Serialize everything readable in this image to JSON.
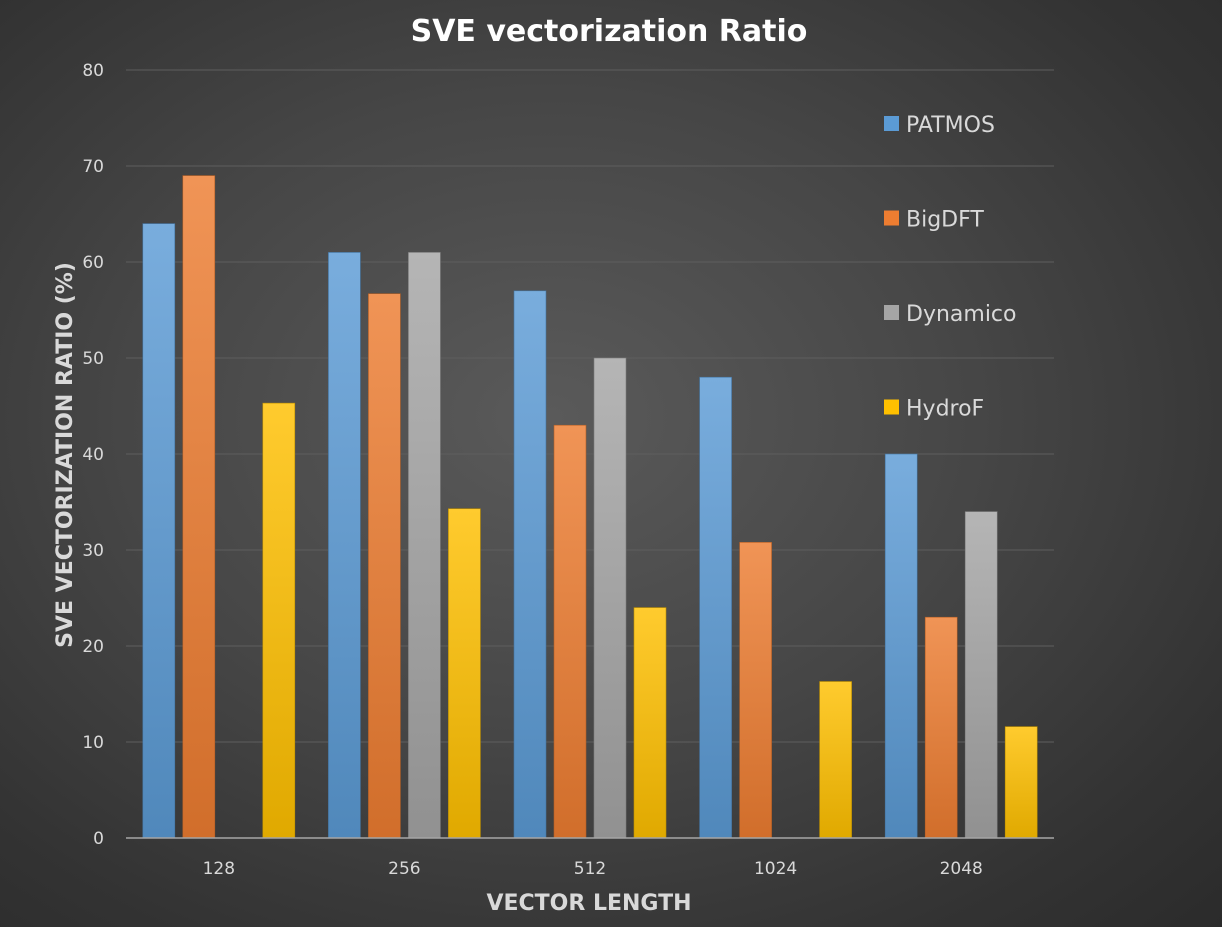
{
  "chart_data": {
    "type": "bar",
    "title": "SVE vectorization Ratio",
    "xlabel": "VECTOR LENGTH",
    "ylabel": "SVE  VECTORIZATION RATIO (%)",
    "ylim": [
      0,
      80
    ],
    "yticks": [
      0,
      10,
      20,
      30,
      40,
      50,
      60,
      70,
      80
    ],
    "categories": [
      "128",
      "256",
      "512",
      "1024",
      "2048"
    ],
    "grid": true,
    "legend_position": "right",
    "series": [
      {
        "name": "PATMOS",
        "color": "#5b9bd5",
        "values": [
          64,
          61,
          57,
          48,
          40
        ]
      },
      {
        "name": "BigDFT",
        "color": "#ed7d31",
        "values": [
          69,
          56.7,
          43,
          30.8,
          23
        ]
      },
      {
        "name": "Dynamico",
        "color": "#a5a5a5",
        "values": [
          null,
          61,
          50,
          null,
          34
        ]
      },
      {
        "name": "HydroF",
        "color": "#ffc000",
        "values": [
          45.3,
          34.3,
          24,
          16.3,
          11.6
        ]
      }
    ]
  }
}
